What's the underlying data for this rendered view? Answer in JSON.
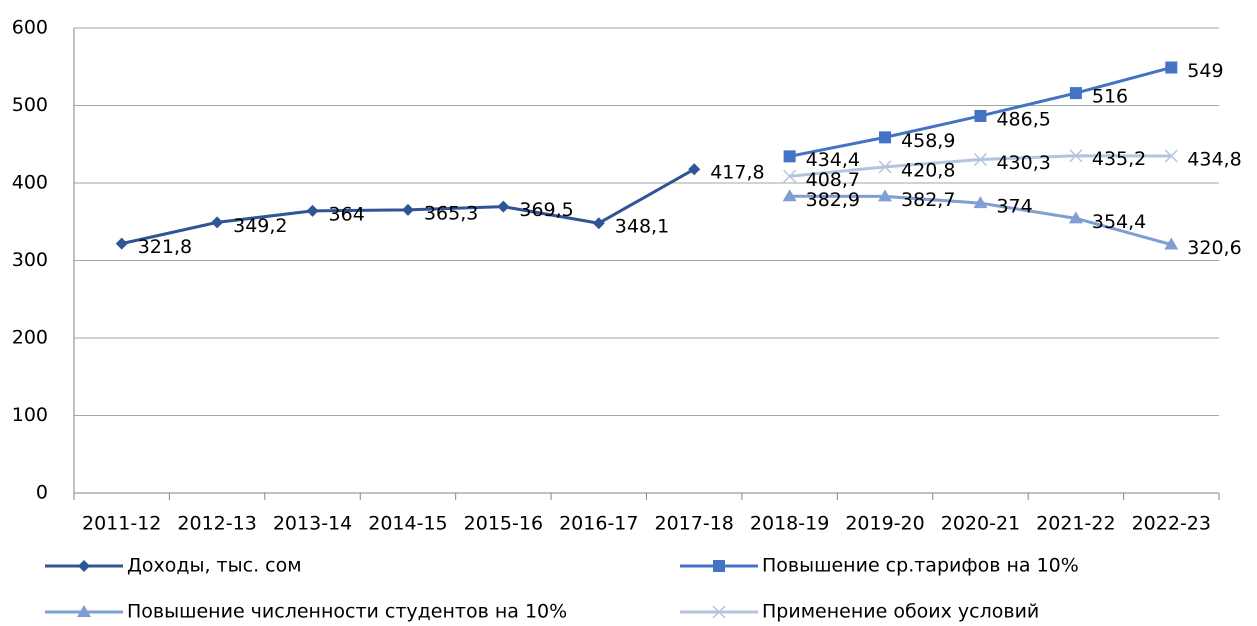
{
  "chart_data": {
    "type": "line",
    "categories": [
      "2011-12",
      "2012-13",
      "2013-14",
      "2014-15",
      "2015-16",
      "2016-17",
      "2017-18",
      "2018-19",
      "2019-20",
      "2020-21",
      "2021-22",
      "2022-23"
    ],
    "series": [
      {
        "name": "Доходы, тыс. сом",
        "color": "#2f5597",
        "marker": "diamond",
        "values": [
          321.8,
          349.2,
          364,
          365.3,
          369.5,
          348.1,
          417.8,
          null,
          null,
          null,
          null,
          null
        ],
        "value_labels": [
          "321,8",
          "349,2",
          "364",
          "365,3",
          "369,5",
          "348,1",
          "417,8",
          null,
          null,
          null,
          null,
          null
        ]
      },
      {
        "name": "Повышение ср.тарифов на 10%",
        "color": "#4472c4",
        "marker": "square",
        "values": [
          null,
          null,
          null,
          null,
          null,
          null,
          null,
          434.4,
          458.9,
          486.5,
          516,
          549
        ],
        "value_labels": [
          null,
          null,
          null,
          null,
          null,
          null,
          null,
          "434,4",
          "458,9",
          "486,5",
          "516",
          "549"
        ]
      },
      {
        "name": "Повышение численности студентов на 10%",
        "color": "#7f9fd4",
        "marker": "triangle",
        "values": [
          null,
          null,
          null,
          null,
          null,
          null,
          null,
          382.9,
          382.7,
          374,
          354.4,
          320.6
        ],
        "value_labels": [
          null,
          null,
          null,
          null,
          null,
          null,
          null,
          "382,9",
          "382,7",
          "374",
          "354,4",
          "320,6"
        ]
      },
      {
        "name": "Применение обоих условий",
        "color": "#b4c3e0",
        "marker": "x",
        "values": [
          null,
          null,
          null,
          null,
          null,
          null,
          null,
          408.7,
          420.8,
          430.3,
          435.2,
          434.8
        ],
        "value_labels": [
          null,
          null,
          null,
          null,
          null,
          null,
          null,
          "408,7",
          "420,8",
          "430,3",
          "435,2",
          "434,8"
        ]
      }
    ],
    "ylim": [
      0,
      600
    ],
    "yticks": [
      0,
      100,
      200,
      300,
      400,
      500,
      600
    ],
    "grid": true,
    "legend": "bottom"
  }
}
